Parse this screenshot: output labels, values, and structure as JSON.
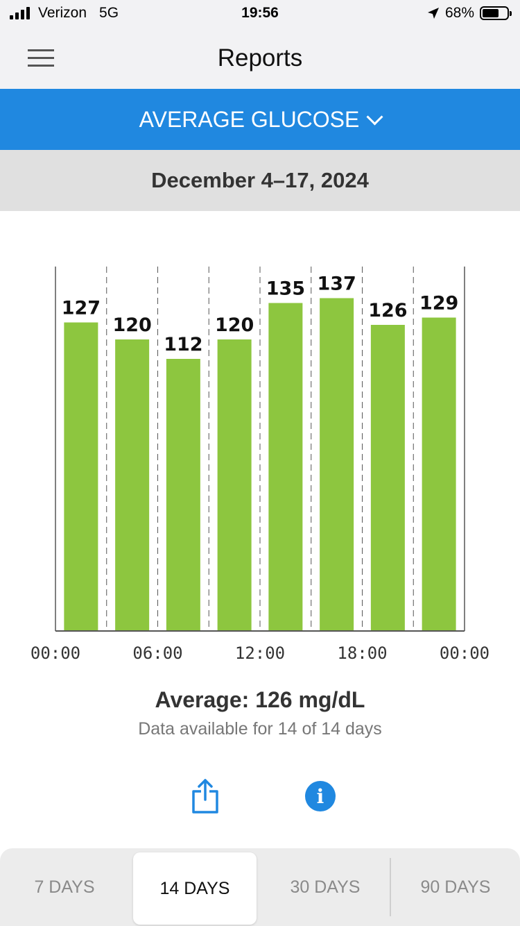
{
  "status_bar": {
    "carrier": "Verizon",
    "network": "5G",
    "time": "19:56",
    "battery_percent": "68%",
    "battery_level": 0.68,
    "icons": [
      "signal-icon",
      "location-arrow-icon",
      "battery-icon"
    ]
  },
  "nav": {
    "title": "Reports",
    "menu_icon": "hamburger-menu-icon"
  },
  "report_selector": {
    "label": "AVERAGE GLUCOSE",
    "icon": "chevron-down-icon"
  },
  "date_range": "December 4–17, 2024",
  "chart_data": {
    "type": "bar",
    "categories": [
      "00:00–03:00",
      "03:00–06:00",
      "06:00–09:00",
      "09:00–12:00",
      "12:00–15:00",
      "15:00–18:00",
      "18:00–21:00",
      "21:00–24:00"
    ],
    "values": [
      127,
      120,
      112,
      120,
      135,
      137,
      126,
      129
    ],
    "data_labels": [
      "127",
      "120",
      "112",
      "120",
      "135",
      "137",
      "126",
      "129"
    ],
    "x_tick_labels": [
      "00:00",
      "06:00",
      "12:00",
      "18:00",
      "00:00"
    ],
    "ylim": [
      0,
      150
    ],
    "bar_color": "#8dc63f",
    "grid": "dashed vertical separators",
    "title": "",
    "xlabel": "",
    "ylabel": ""
  },
  "summary": {
    "average": "Average: 126 mg/dL",
    "availability": "Data available for 14 of 14 days"
  },
  "actions": {
    "share_icon": "share-icon",
    "info_icon": "info-icon",
    "info_glyph": "i"
  },
  "range_tabs": [
    {
      "label": "7 DAYS",
      "active": false
    },
    {
      "label": "14 DAYS",
      "active": true
    },
    {
      "label": "30 DAYS",
      "active": false
    },
    {
      "label": "90 DAYS",
      "active": false
    }
  ],
  "colors": {
    "accent": "#2088e0",
    "bar": "#8dc63f"
  }
}
